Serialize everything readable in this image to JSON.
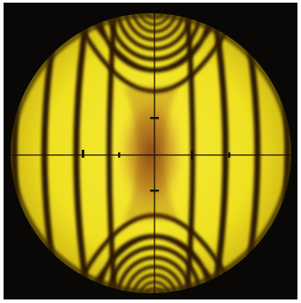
{
  "image": {
    "subject": "conoscopic-interference-figure",
    "colors": {
      "background": "#0a0806",
      "field_bright": "#f2e624",
      "field_mid": "#e0c81a",
      "fringe_dark": "#2a1406",
      "center_brown": "#7a3210",
      "crosshair": "#1a1208",
      "rim_shadow": "#5a4a08"
    }
  }
}
